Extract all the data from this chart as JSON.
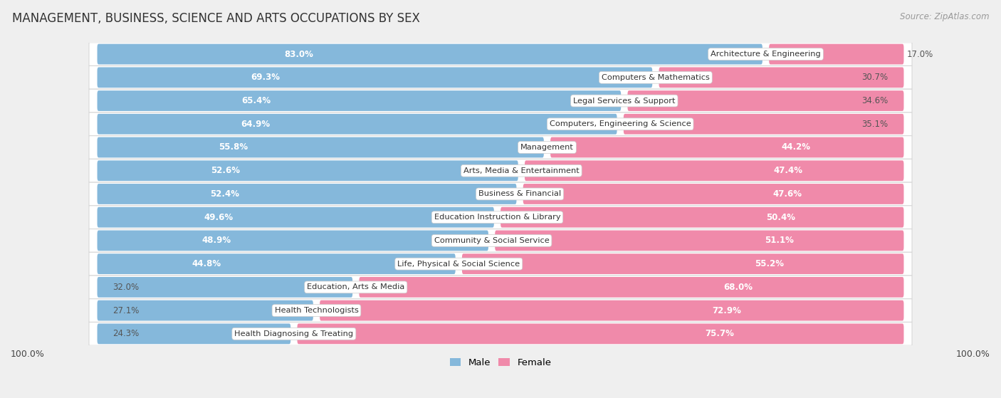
{
  "title": "MANAGEMENT, BUSINESS, SCIENCE AND ARTS OCCUPATIONS BY SEX",
  "source": "Source: ZipAtlas.com",
  "categories": [
    "Architecture & Engineering",
    "Computers & Mathematics",
    "Legal Services & Support",
    "Computers, Engineering & Science",
    "Management",
    "Arts, Media & Entertainment",
    "Business & Financial",
    "Education Instruction & Library",
    "Community & Social Service",
    "Life, Physical & Social Science",
    "Education, Arts & Media",
    "Health Technologists",
    "Health Diagnosing & Treating"
  ],
  "male_pct": [
    83.0,
    69.3,
    65.4,
    64.9,
    55.8,
    52.6,
    52.4,
    49.6,
    48.9,
    44.8,
    32.0,
    27.1,
    24.3
  ],
  "female_pct": [
    17.0,
    30.7,
    34.6,
    35.1,
    44.2,
    47.4,
    47.6,
    50.4,
    51.1,
    55.2,
    68.0,
    72.9,
    75.7
  ],
  "male_color": "#85b8db",
  "female_color": "#f08aaa",
  "bg_color": "#efefef",
  "row_bg_color": "#fafafa",
  "bar_bg_color": "#e8e8e8",
  "title_fontsize": 12,
  "label_fontsize": 8.5,
  "legend_fontsize": 9.5,
  "source_fontsize": 8.5
}
